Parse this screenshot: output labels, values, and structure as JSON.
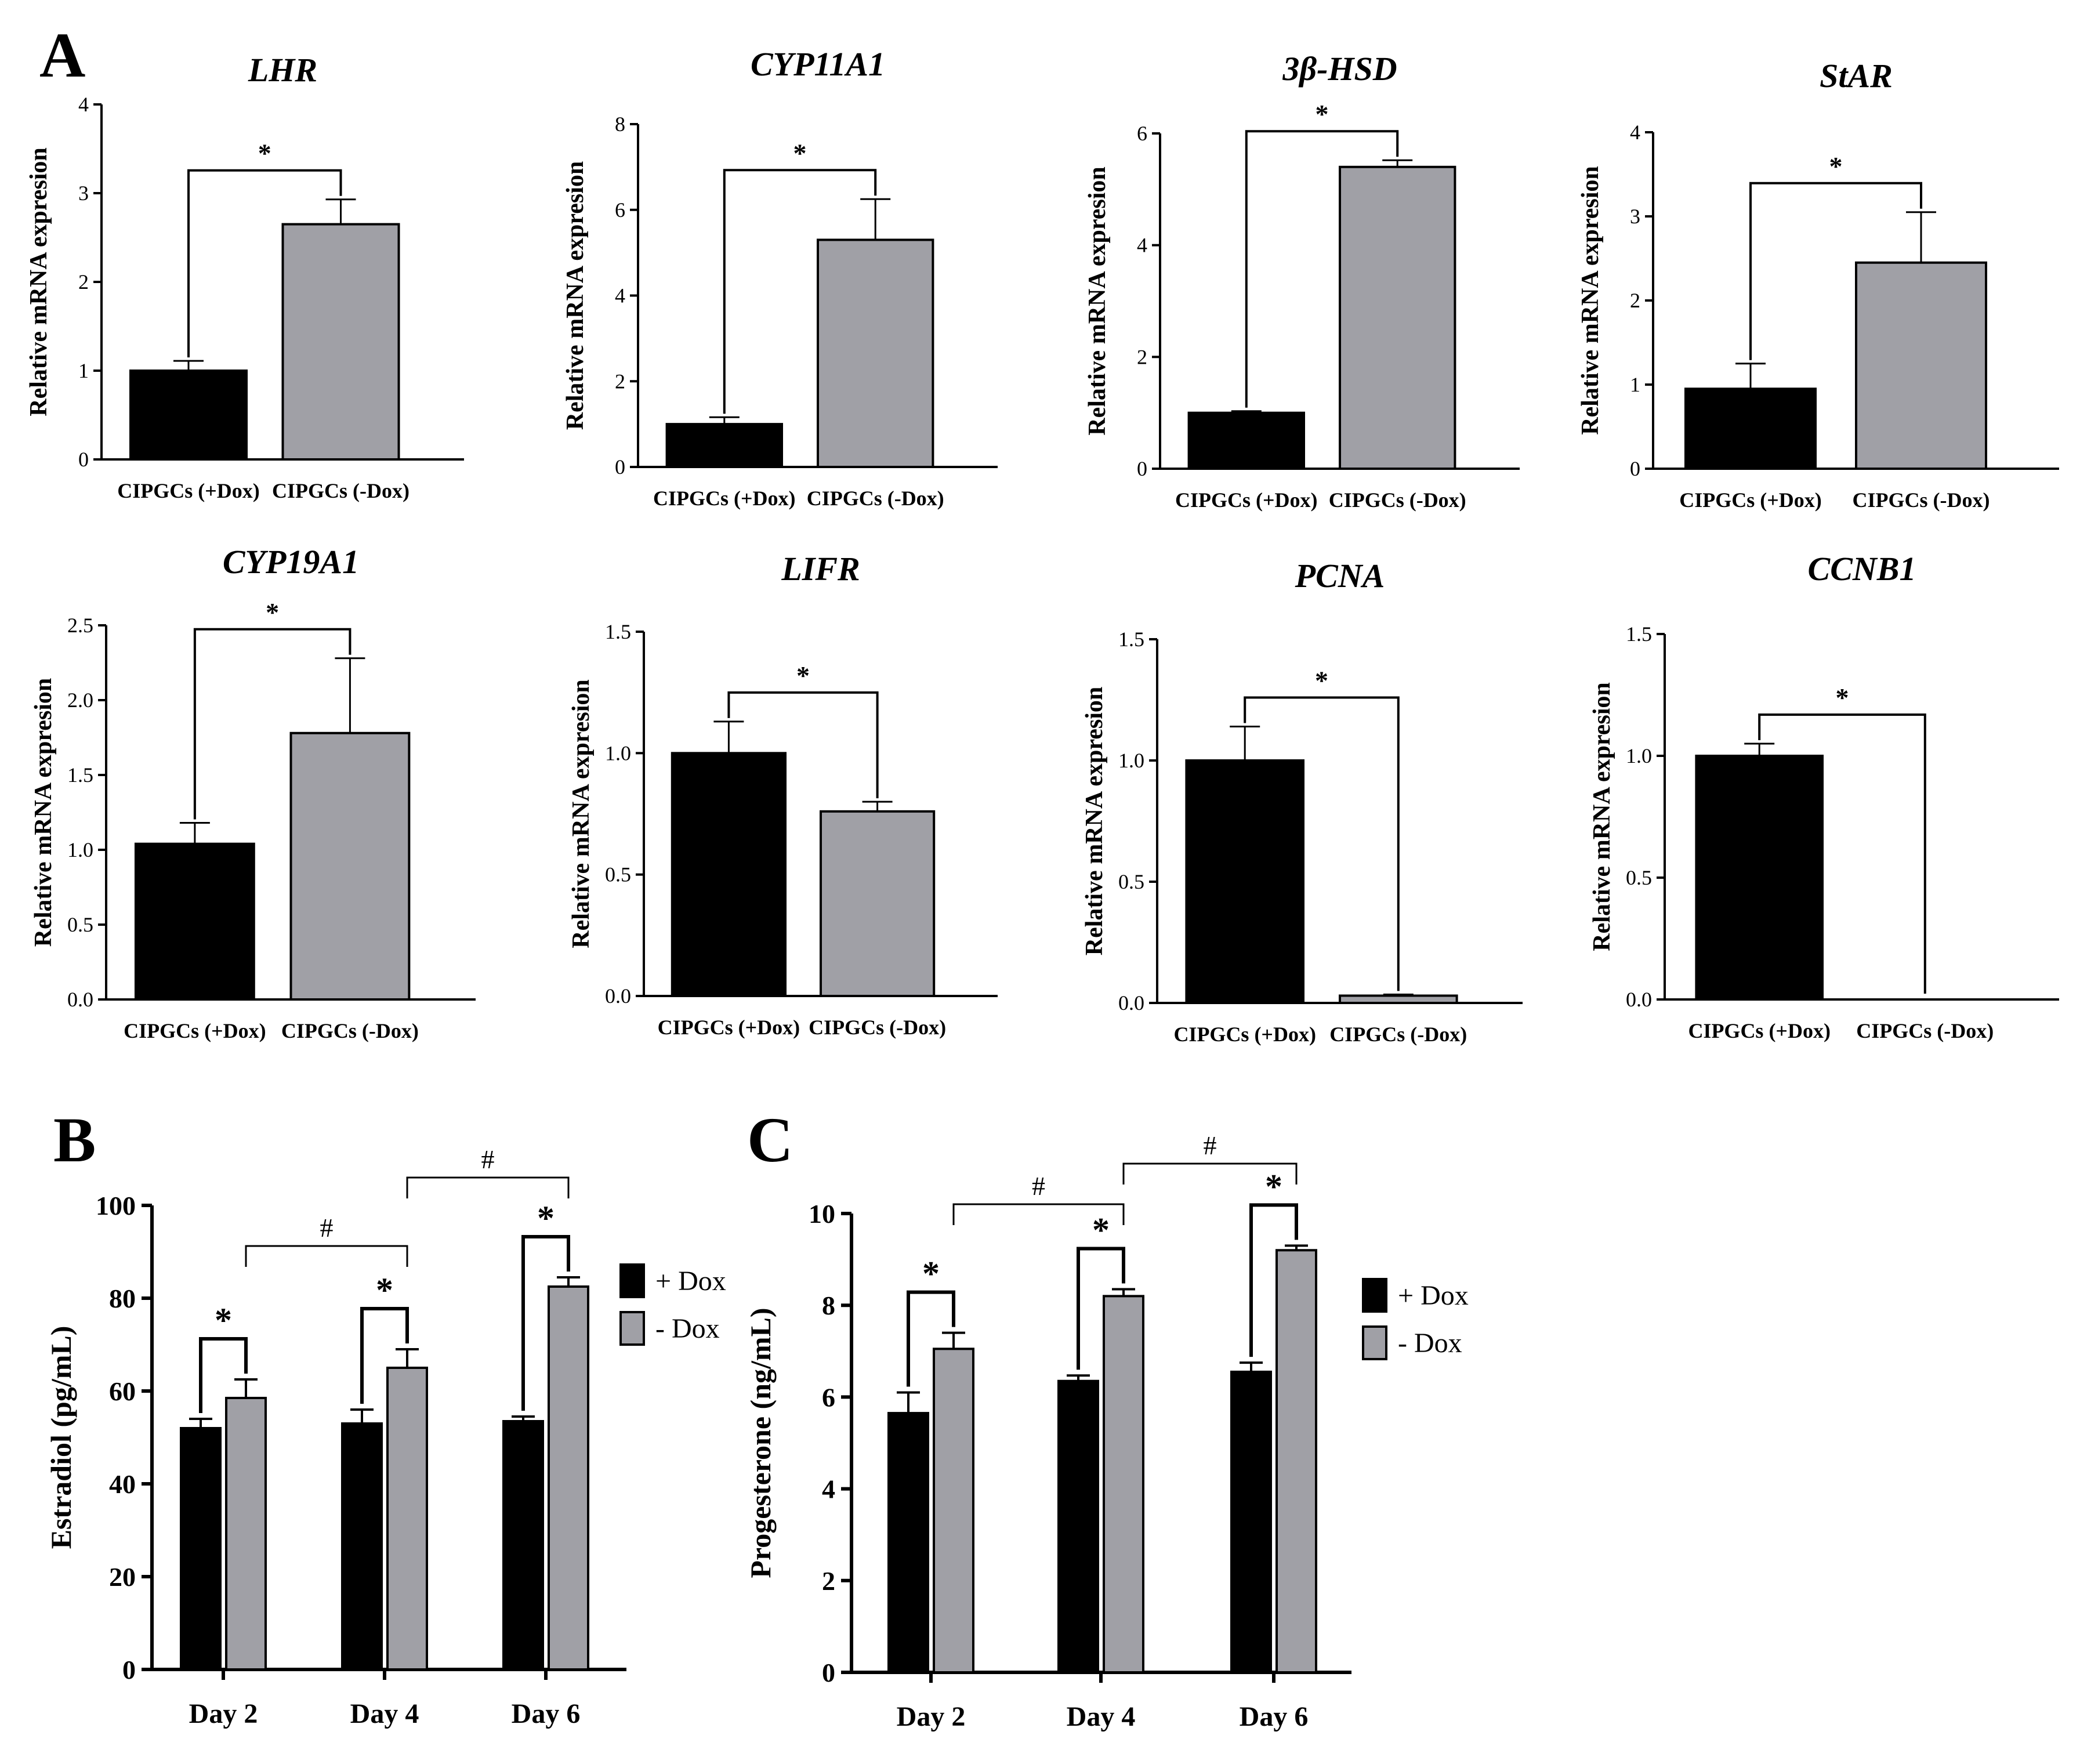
{
  "panel_labels": [
    "A",
    "B",
    "C"
  ],
  "colors": {
    "plus_dox": "#000000",
    "minus_dox": "#a0a0a6",
    "axis": "#000000"
  },
  "chart_data": [
    {
      "panel": "A",
      "type": "bar",
      "title": "LHR",
      "ylabel": "Relative mRNA expresion",
      "categories": [
        "CIPGCs (+Dox)",
        "CIPGCs (-Dox)"
      ],
      "values": [
        1.0,
        2.65
      ],
      "errors": [
        0.11,
        0.28
      ],
      "ylim": [
        0,
        4
      ],
      "yticks": [
        "0",
        "1",
        "2",
        "3",
        "4"
      ],
      "significance": "*"
    },
    {
      "panel": "A",
      "type": "bar",
      "title": "CYP11A1",
      "ylabel": "Relative mRNA expresion",
      "categories": [
        "CIPGCs (+Dox)",
        "CIPGCs (-Dox)"
      ],
      "values": [
        1.0,
        5.3
      ],
      "errors": [
        0.16,
        0.95
      ],
      "ylim": [
        0,
        8
      ],
      "yticks": [
        "0",
        "2",
        "4",
        "6",
        "8"
      ],
      "significance": "*"
    },
    {
      "panel": "A",
      "type": "bar",
      "title": "3β-HSD",
      "ylabel": "Relative mRNA expresion",
      "categories": [
        "CIPGCs (+Dox)",
        "CIPGCs (-Dox)"
      ],
      "values": [
        1.0,
        5.4
      ],
      "errors": [
        0.03,
        0.12
      ],
      "ylim": [
        0,
        6
      ],
      "yticks": [
        "0",
        "2",
        "4",
        "6"
      ],
      "significance": "*"
    },
    {
      "panel": "A",
      "type": "bar",
      "title": "StAR",
      "ylabel": "Relative mRNA expresion",
      "categories": [
        "CIPGCs (+Dox)",
        "CIPGCs (-Dox)"
      ],
      "values": [
        0.95,
        2.45
      ],
      "errors": [
        0.3,
        0.6
      ],
      "ylim": [
        0,
        4
      ],
      "yticks": [
        "0",
        "1",
        "2",
        "3",
        "4"
      ],
      "significance": "*"
    },
    {
      "panel": "A",
      "type": "bar",
      "title": "CYP19A1",
      "ylabel": "Relative mRNA expresion",
      "categories": [
        "CIPGCs (+Dox)",
        "CIPGCs (-Dox)"
      ],
      "values": [
        1.04,
        1.78
      ],
      "errors": [
        0.14,
        0.5
      ],
      "ylim": [
        0,
        2.5
      ],
      "yticks": [
        "0.0",
        "0.5",
        "1.0",
        "1.5",
        "2.0",
        "2.5"
      ],
      "significance": "*"
    },
    {
      "panel": "A",
      "type": "bar",
      "title": "LIFR",
      "ylabel": "Relative mRNA expresion",
      "categories": [
        "CIPGCs (+Dox)",
        "CIPGCs (-Dox)"
      ],
      "values": [
        1.0,
        0.76
      ],
      "errors": [
        0.13,
        0.04
      ],
      "ylim": [
        0,
        1.5
      ],
      "yticks": [
        "0.0",
        "0.5",
        "1.0",
        "1.5"
      ],
      "significance": "*"
    },
    {
      "panel": "A",
      "type": "bar",
      "title": "PCNA",
      "ylabel": "Relative mRNA expresion",
      "categories": [
        "CIPGCs (+Dox)",
        "CIPGCs (-Dox)"
      ],
      "values": [
        1.0,
        0.03
      ],
      "errors": [
        0.14,
        0.005
      ],
      "ylim": [
        0,
        1.5
      ],
      "yticks": [
        "0.0",
        "0.5",
        "1.0",
        "1.5"
      ],
      "significance": "*"
    },
    {
      "panel": "A",
      "type": "bar",
      "title": "CCNB1",
      "ylabel": "Relative mRNA expresion",
      "categories": [
        "CIPGCs (+Dox)",
        "CIPGCs (-Dox)"
      ],
      "values": [
        1.0,
        0.0
      ],
      "errors": [
        0.05,
        0.0
      ],
      "ylim": [
        0,
        1.5
      ],
      "yticks": [
        "0.0",
        "0.5",
        "1.0",
        "1.5"
      ],
      "significance": "*"
    },
    {
      "panel": "B",
      "type": "bar",
      "ylabel": "Estradiol (pg/mL)",
      "categories": [
        "Day 2",
        "Day 4",
        "Day 6"
      ],
      "series": [
        {
          "name": "+ Dox",
          "values": [
            52,
            53,
            53.5
          ],
          "errors": [
            2,
            3,
            1
          ]
        },
        {
          "name": "- Dox",
          "values": [
            58.5,
            65,
            82.5
          ],
          "errors": [
            4,
            4,
            2
          ]
        }
      ],
      "ylim": [
        0,
        100
      ],
      "yticks": [
        "0",
        "20",
        "40",
        "60",
        "80",
        "100"
      ],
      "within_day_significance": [
        "*",
        "*",
        "*"
      ],
      "between_day_significance": [
        "#",
        "#"
      ]
    },
    {
      "panel": "C",
      "type": "bar",
      "ylabel": "Progesterone (ng/mL)",
      "categories": [
        "Day 2",
        "Day 4",
        "Day 6"
      ],
      "series": [
        {
          "name": "+ Dox",
          "values": [
            5.65,
            6.35,
            6.55
          ],
          "errors": [
            0.45,
            0.12,
            0.2
          ]
        },
        {
          "name": "- Dox",
          "values": [
            7.05,
            8.2,
            9.2
          ],
          "errors": [
            0.35,
            0.15,
            0.1
          ]
        }
      ],
      "ylim": [
        0,
        10
      ],
      "yticks": [
        "0",
        "2",
        "4",
        "6",
        "8",
        "10"
      ],
      "within_day_significance": [
        "*",
        "*",
        "*"
      ],
      "between_day_significance": [
        "#",
        "#"
      ]
    }
  ]
}
